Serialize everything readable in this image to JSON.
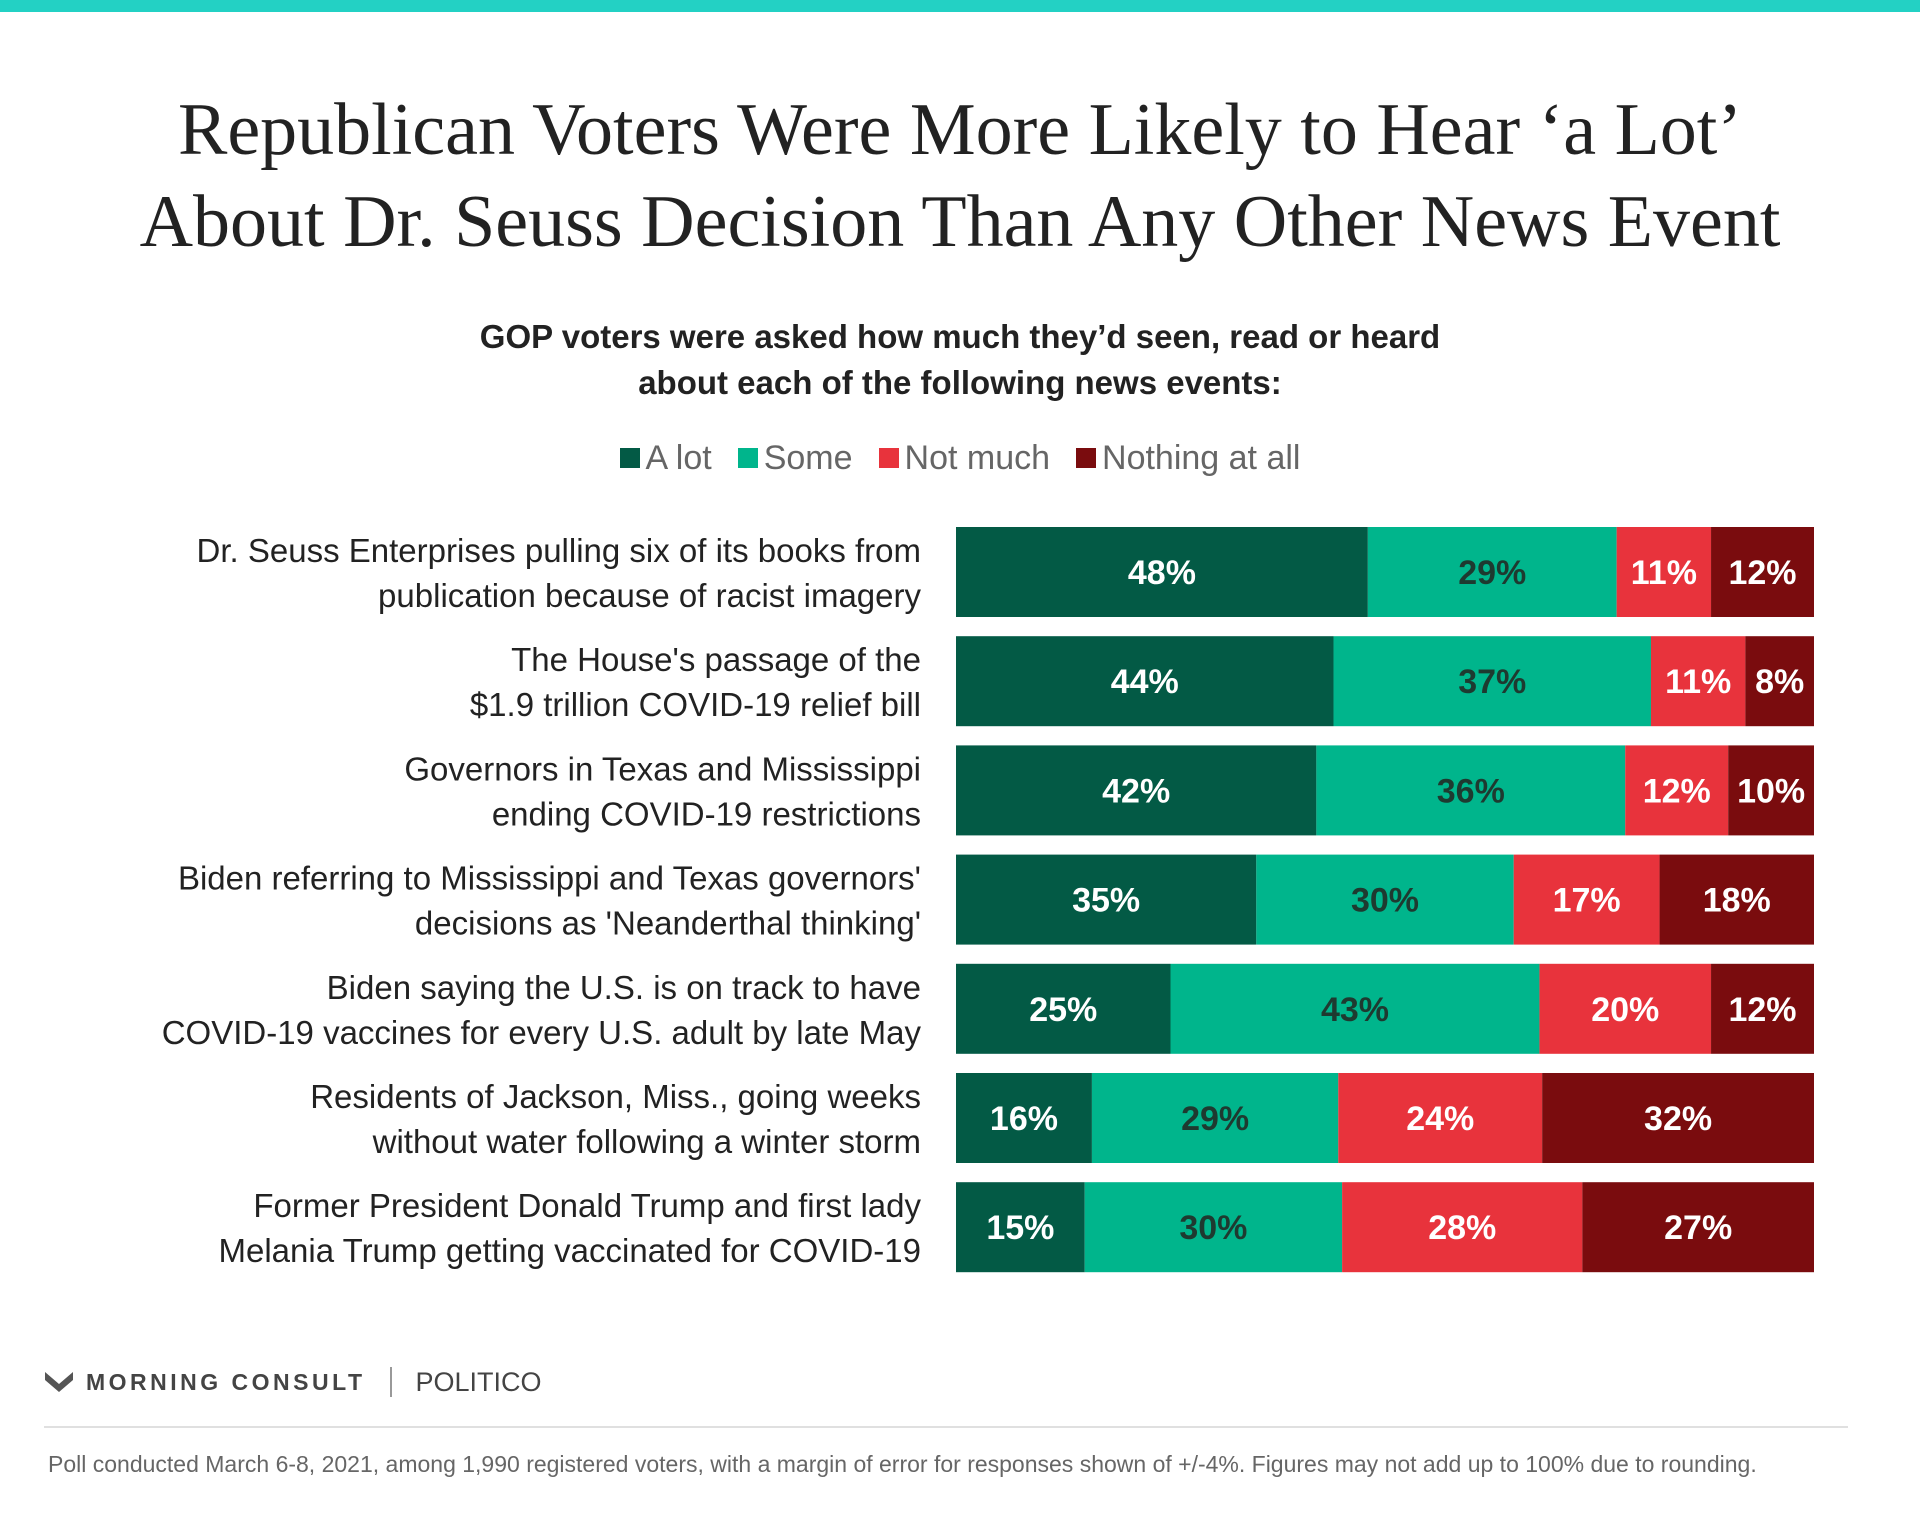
{
  "theme": {
    "accent": "#23d1c4",
    "colors": [
      "#035a45",
      "#00b58c",
      "#e8333c",
      "#7a0c0e"
    ],
    "background": "#ffffff"
  },
  "title_lines": [
    "Republican Voters Were More Likely to Hear ‘a Lot’",
    "About Dr. Seuss Decision Than Any Other News Event"
  ],
  "subtitle_lines": [
    "GOP voters were asked how much they’d seen, read or heard",
    "about each of the following news events:"
  ],
  "chart_data": {
    "type": "bar",
    "orientation": "horizontal",
    "stacked": true,
    "unit": "%",
    "xlim": [
      0,
      100
    ],
    "grid": false,
    "legend_position": "top-center",
    "categories": [
      [
        "Dr. Seuss Enterprises pulling six of its books from",
        "publication because of racist imagery"
      ],
      [
        "The House's passage of the",
        "$1.9 trillion COVID-19 relief bill"
      ],
      [
        "Governors in Texas and Mississippi",
        "ending COVID-19 restrictions"
      ],
      [
        "Biden referring to Mississippi and Texas governors'",
        "decisions as 'Neanderthal thinking'"
      ],
      [
        "Biden saying the U.S. is on track to have",
        "COVID-19 vaccines for every U.S. adult by late May"
      ],
      [
        "Residents of Jackson, Miss., going weeks",
        "without water following a winter storm"
      ],
      [
        "Former President Donald Trump and first lady",
        "Melania Trump getting vaccinated for COVID-19"
      ]
    ],
    "series": [
      {
        "name": "A lot",
        "color": "#035a45",
        "values": [
          48,
          44,
          42,
          35,
          25,
          16,
          15
        ]
      },
      {
        "name": "Some",
        "color": "#00b58c",
        "values": [
          29,
          37,
          36,
          30,
          43,
          29,
          30
        ]
      },
      {
        "name": "Not much",
        "color": "#e8333c",
        "values": [
          11,
          11,
          12,
          17,
          20,
          24,
          28
        ]
      },
      {
        "name": "Nothing at all",
        "color": "#7a0c0e",
        "values": [
          12,
          8,
          10,
          18,
          12,
          32,
          27
        ]
      }
    ]
  },
  "branding": {
    "publisher": "MORNING CONSULT",
    "partner": "POLITICO",
    "logo_icon": "morning-consult-chevron-icon"
  },
  "footnote": "Poll conducted March 6-8, 2021, among 1,990 registered voters, with a margin of error for responses shown of +/-4%. Figures may not add up to 100% due to rounding."
}
